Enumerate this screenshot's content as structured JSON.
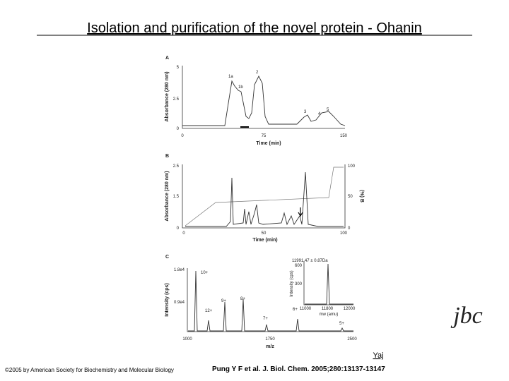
{
  "title": "Isolation and purification of the novel protein - Ohanin",
  "figure": {
    "panel_a": {
      "label": "A",
      "y_axis_label": "Absorbance (280 nm)",
      "y_ticks": [
        "5",
        "2.5",
        "0"
      ],
      "x_ticks": [
        "0",
        "75",
        "150"
      ],
      "x_axis_label": "Time (min)",
      "peak_labels": [
        "1a",
        "1b",
        "2",
        "3",
        "4",
        "5"
      ]
    },
    "panel_b": {
      "label": "B",
      "y_axis_label": "Absorbance (280 nm)",
      "y_ticks": [
        "2.5",
        "1.5",
        "0"
      ],
      "y2_axis_label": "(%) B",
      "y2_ticks": [
        "100",
        "50",
        "0"
      ],
      "x_ticks": [
        "0",
        "50",
        "100"
      ],
      "x_axis_label": "Time (min)"
    },
    "panel_c": {
      "label": "C",
      "y_axis_label": "Intensity (cps)",
      "y_ticks": [
        "1.8e4",
        "0.9e4"
      ],
      "x_ticks": [
        "1000",
        "1750",
        "2500"
      ],
      "x_axis_label": "m/z",
      "peak_labels": [
        "10+",
        "12+",
        "9+",
        "8+",
        "7+",
        "6+",
        "5+"
      ],
      "inset": {
        "annotation": "11991.47 ± 0.87Da",
        "y_axis_label": "Intensity (cps)",
        "y_ticks": [
          "600",
          "300"
        ],
        "x_ticks": [
          "11000",
          "11800",
          "12000"
        ],
        "x_axis_label": "mw (amu)"
      }
    }
  },
  "logo": "jbc",
  "link": "Yaj",
  "copyright": "©2005 by American Society for Biochemistry and Molecular Biology",
  "citation": "Pung Y F et al. J. Biol. Chem. 2005;280:13137-13147"
}
